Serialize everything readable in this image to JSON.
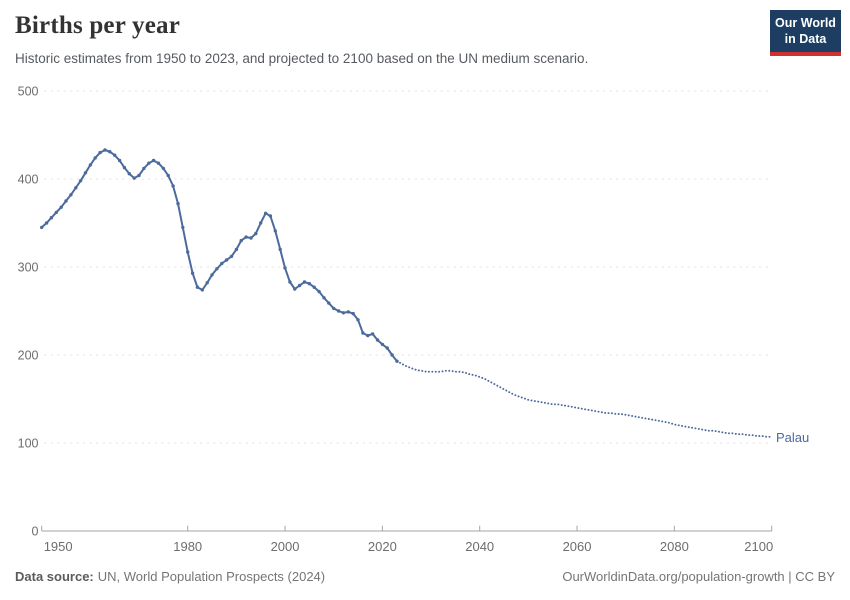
{
  "header": {
    "title": "Births per year",
    "subtitle": "Historic estimates from 1950 to 2023, and projected to 2100 based on the UN medium scenario.",
    "logo_line1": "Our World",
    "logo_line2": "in Data"
  },
  "footer": {
    "datasource_label": "Data source:",
    "datasource_value": "UN, World Population Prospects (2024)",
    "right": "OurWorldinData.org/population-growth | CC BY"
  },
  "chart_data": {
    "type": "line",
    "title": "Births per year",
    "entity_label": "Palau",
    "xlabel": "",
    "ylabel": "",
    "xlim": [
      1950,
      2100
    ],
    "ylim": [
      0,
      500
    ],
    "grid": true,
    "x_ticks": [
      1950,
      1980,
      2000,
      2020,
      2040,
      2060,
      2080,
      2100
    ],
    "y_ticks": [
      0,
      100,
      200,
      300,
      400,
      500
    ],
    "colors": {
      "line": "#4C6A9C",
      "grid": "#e6e6e6",
      "axis": "#a5a5a5",
      "axis_text": "#6d6d6d"
    },
    "series": [
      {
        "key": "historic",
        "style": "solid",
        "start_year": 1950,
        "values": [
          345,
          350,
          356,
          362,
          368,
          375,
          382,
          390,
          398,
          407,
          416,
          424,
          430,
          433,
          431,
          427,
          421,
          413,
          406,
          401,
          404,
          412,
          418,
          421,
          418,
          412,
          404,
          392,
          372,
          345,
          317,
          293,
          277,
          274,
          282,
          291,
          298,
          304,
          308,
          312,
          320,
          330,
          334,
          333,
          338,
          350,
          361,
          358,
          341,
          320,
          299,
          283,
          275,
          279,
          283,
          281,
          277,
          272,
          265,
          259,
          253,
          250,
          248,
          249,
          247,
          240,
          225,
          222,
          224,
          217,
          212,
          208,
          200,
          193
        ]
      },
      {
        "key": "projection",
        "style": "dotted",
        "start_year": 2023,
        "values": [
          193,
          190,
          187,
          185,
          183,
          182,
          181,
          181,
          181,
          181,
          182,
          182,
          181,
          181,
          180,
          178,
          177,
          175,
          173,
          170,
          167,
          164,
          161,
          158,
          155,
          153,
          151,
          149,
          148,
          147,
          146,
          145,
          144,
          144,
          143,
          142,
          141,
          140,
          139,
          138,
          137,
          136,
          135,
          134,
          134,
          133,
          133,
          132,
          131,
          130,
          129,
          128,
          127,
          126,
          125,
          124,
          123,
          121,
          120,
          119,
          118,
          117,
          116,
          115,
          114,
          114,
          113,
          112,
          111,
          111,
          110,
          110,
          109,
          109,
          108,
          108,
          107,
          107
        ]
      }
    ]
  }
}
